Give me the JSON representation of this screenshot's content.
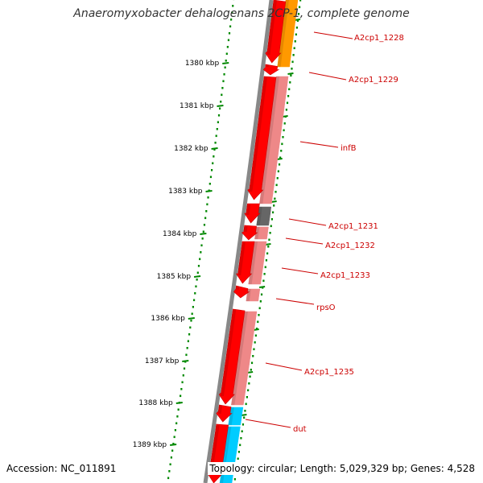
{
  "title": "Anaeromyxobacter dehalogenans 2CP-1, complete genome",
  "footer": {
    "accession": "Accession: NC_011891",
    "topology": "Topology: circular; Length: 5,029,329 bp; Genes: 4,528"
  },
  "scale_labels": [
    "1380 kbp",
    "1381 kbp",
    "1382 kbp",
    "1383 kbp",
    "1384 kbp",
    "1385 kbp",
    "1386 kbp",
    "1387 kbp",
    "1388 kbp",
    "1389 kbp"
  ],
  "gene_labels": [
    "A2cp1_1228",
    "A2cp1_1229",
    "infB",
    "A2cp1_1231",
    "A2cp1_1232",
    "A2cp1_1233",
    "rpsO",
    "A2cp1_1235",
    "dut"
  ],
  "colors": {
    "gene_arrow": "#ff0000",
    "gene_arrow_dark": "#cc0000",
    "rna_pink": "#ee8888",
    "rna_pink_dark": "#cc6666",
    "orange": "#ff9900",
    "gray_block": "#666666",
    "cyan": "#00ccff",
    "backbone": "#888888",
    "dot_track": "#008800",
    "label_text": "#cc0000",
    "callout_line": "#cc0000"
  }
}
